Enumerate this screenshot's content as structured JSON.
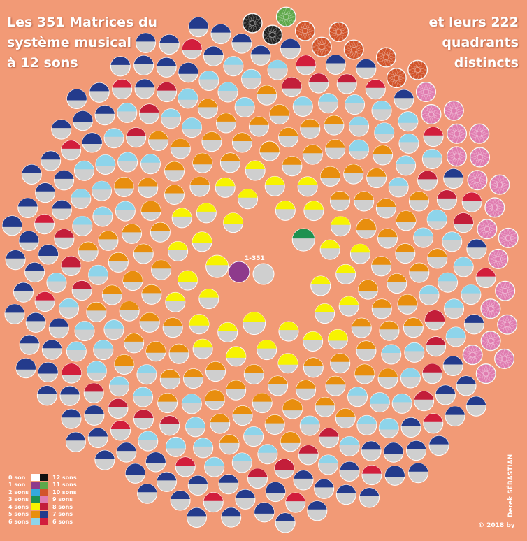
{
  "title_left": [
    "Les 351 Matrices du",
    "système musical",
    "à 12 sons"
  ],
  "title_right": [
    "et leurs 222",
    "quadrants",
    "distincts"
  ],
  "center_label": "1-351",
  "legend": [
    {
      "left": "0 son",
      "left_color": "#ffffff",
      "right_color": "#111111",
      "right": "12 sons"
    },
    {
      "left": "1 son",
      "left_color": "#8E3A8C",
      "right_color": "#5EA84A",
      "right": "11 sons"
    },
    {
      "left": "2 sons",
      "left_color": "#35A9DC",
      "right_color": "#D2542A",
      "right": "10 sons"
    },
    {
      "left": "3 sons",
      "left_color": "#1E9150",
      "right_color": "#E07CB0",
      "right": "9 sons"
    },
    {
      "left": "4 sons",
      "left_color": "#F7F300",
      "right_color": "#C31E3A",
      "right": "8 sons"
    },
    {
      "left": "5 sons",
      "left_color": "#E88E0E",
      "right_color": "#243B8C",
      "right": "7 sons"
    },
    {
      "left": "6 sons",
      "left_color": "#8ED4EA",
      "right_color": "#D21E3C",
      "right": "6 sons"
    }
  ],
  "copyright": "© 2018 by",
  "author": "Derek SÉBASTIAN",
  "colors": {
    "background": "#F29A76",
    "grey": "#CFCFCF",
    "one_note": "#8E3A8C",
    "two_notes": "#35A9DC",
    "three_notes": "#1E9150",
    "four_notes": "#F7F300",
    "five_notes": "#E88E0E",
    "six_notes_a": "#8ED4EA",
    "six_notes_b": "#D21E3C",
    "seven_notes": "#243B8C",
    "eight_notes": "#C31E3A",
    "nine_notes": "#E07CB0",
    "ten_notes": "#D2542A",
    "eleven_notes": "#5EA84A",
    "twelve_notes": "#222222"
  }
}
